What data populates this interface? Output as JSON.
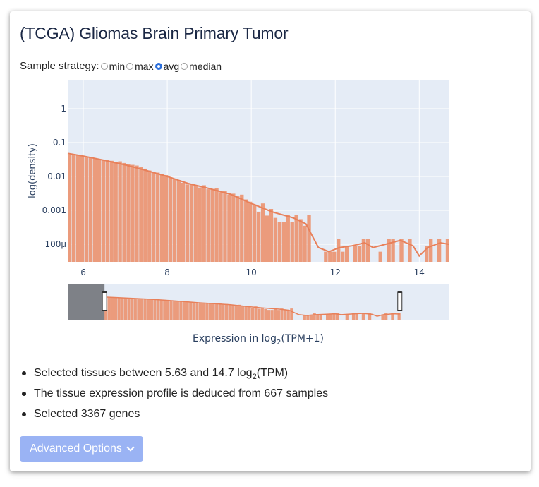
{
  "title": "(TCGA) Gliomas Brain Primary Tumor",
  "sample_strategy": {
    "label": "Sample strategy:",
    "options": [
      "min",
      "max",
      "avg",
      "median"
    ],
    "selected": "avg"
  },
  "chart_data": {
    "type": "bar",
    "ylabel": "log(density)",
    "xlabel_main": "Expression in log",
    "xlabel_sub": "2",
    "xlabel_tail": "(TPM+1)",
    "x_ticks": [
      "6",
      "8",
      "10",
      "12",
      "14"
    ],
    "y_ticks": [
      "1",
      "0.1",
      "0.01",
      "0.001",
      "100μ"
    ],
    "y_scale": "log",
    "xlim": [
      5.63,
      14.7
    ],
    "bar_color": "#eb9b7c",
    "line_color": "#e8805a",
    "bin_width": 0.1,
    "bars": [
      [
        5.63,
        0.045
      ],
      [
        5.73,
        0.043
      ],
      [
        5.83,
        0.042
      ],
      [
        5.93,
        0.04
      ],
      [
        6.03,
        0.038
      ],
      [
        6.13,
        0.036
      ],
      [
        6.23,
        0.034
      ],
      [
        6.33,
        0.032
      ],
      [
        6.43,
        0.03
      ],
      [
        6.53,
        0.031
      ],
      [
        6.63,
        0.029
      ],
      [
        6.73,
        0.027
      ],
      [
        6.83,
        0.028
      ],
      [
        6.93,
        0.025
      ],
      [
        7.03,
        0.023
      ],
      [
        7.13,
        0.022
      ],
      [
        7.23,
        0.021
      ],
      [
        7.33,
        0.019
      ],
      [
        7.43,
        0.017
      ],
      [
        7.53,
        0.015
      ],
      [
        7.63,
        0.014
      ],
      [
        7.73,
        0.013
      ],
      [
        7.83,
        0.012
      ],
      [
        7.93,
        0.011
      ],
      [
        8.03,
        0.0095
      ],
      [
        8.13,
        0.0085
      ],
      [
        8.23,
        0.0078
      ],
      [
        8.33,
        0.0065
      ],
      [
        8.43,
        0.0058
      ],
      [
        8.53,
        0.0062
      ],
      [
        8.63,
        0.0052
      ],
      [
        8.73,
        0.0047
      ],
      [
        8.83,
        0.0055
      ],
      [
        8.93,
        0.0042
      ],
      [
        9.03,
        0.0041
      ],
      [
        9.13,
        0.0045
      ],
      [
        9.23,
        0.0034
      ],
      [
        9.33,
        0.0038
      ],
      [
        9.43,
        0.0029
      ],
      [
        9.53,
        0.0031
      ],
      [
        9.63,
        0.0026
      ],
      [
        9.73,
        0.0029
      ],
      [
        9.83,
        0.0021
      ],
      [
        9.93,
        0.0018
      ],
      [
        10.03,
        0.0015
      ],
      [
        10.13,
        0.0009
      ],
      [
        10.23,
        0.0016
      ],
      [
        10.33,
        0.0007
      ],
      [
        10.43,
        0.0011
      ],
      [
        10.53,
        0.0006
      ],
      [
        10.63,
        0.00045
      ],
      [
        10.73,
        0.00045
      ],
      [
        10.83,
        0.00075
      ],
      [
        10.93,
        0.00045
      ],
      [
        11.03,
        0.00075
      ],
      [
        11.13,
        0.00055
      ],
      [
        11.23,
        0.00035
      ],
      [
        11.33,
        0.00075
      ],
      [
        11.73,
        6e-05
      ],
      [
        11.83,
        6e-05
      ],
      [
        11.93,
        6e-05
      ],
      [
        12.03,
        0.00014
      ],
      [
        12.13,
        6e-05
      ],
      [
        12.23,
        9e-05
      ],
      [
        12.43,
        9e-05
      ],
      [
        12.53,
        9e-05
      ],
      [
        12.63,
        0.00014
      ],
      [
        12.73,
        0.00014
      ],
      [
        13.03,
        6e-05
      ],
      [
        13.23,
        0.00014
      ],
      [
        13.33,
        0.00014
      ],
      [
        13.53,
        0.00014
      ],
      [
        13.73,
        0.00014
      ],
      [
        14.13,
        9e-05
      ],
      [
        14.23,
        0.00014
      ],
      [
        14.43,
        0.00014
      ],
      [
        14.63,
        0.00014
      ]
    ],
    "kde": [
      [
        5.63,
        0.048
      ],
      [
        6.0,
        0.04
      ],
      [
        6.5,
        0.03
      ],
      [
        7.0,
        0.022
      ],
      [
        7.5,
        0.015
      ],
      [
        8.0,
        0.01
      ],
      [
        8.5,
        0.0062
      ],
      [
        9.0,
        0.0044
      ],
      [
        9.5,
        0.003
      ],
      [
        10.0,
        0.0016
      ],
      [
        10.5,
        0.0009
      ],
      [
        11.0,
        0.0006
      ],
      [
        11.3,
        0.0004
      ],
      [
        11.6,
        8e-05
      ],
      [
        11.85,
        6e-05
      ],
      [
        12.1,
        8e-05
      ],
      [
        12.4,
        9e-05
      ],
      [
        12.7,
        0.00011
      ],
      [
        12.9,
        8e-05
      ],
      [
        13.2,
        0.0001
      ],
      [
        13.55,
        0.00013
      ],
      [
        13.85,
        9e-05
      ],
      [
        14.0,
        4.5e-05
      ],
      [
        14.2,
        8e-05
      ],
      [
        14.5,
        0.00011
      ],
      [
        14.7,
        0.0001
      ]
    ]
  },
  "range_selector": {
    "full_range": [
      4.5,
      16.2
    ],
    "selected": [
      5.63,
      14.7
    ]
  },
  "bullets": {
    "b1_pre": "Selected tissues between 5.63 and 14.7 log",
    "b1_sub": "2",
    "b1_post": "(TPM)",
    "b2": "The tissue expression profile is deduced from 667 samples",
    "b3": "Selected 3367 genes"
  },
  "advanced_button": "Advanced Options"
}
